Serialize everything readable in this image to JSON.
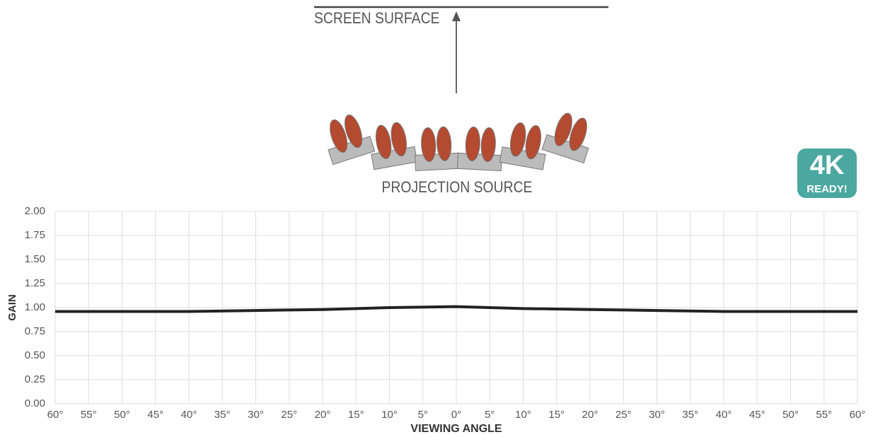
{
  "chart_data": {
    "type": "line",
    "annotations": [
      "SCREEN SURFACE",
      "PROJECTION SOURCE"
    ],
    "badge": [
      "4K",
      "READY!"
    ],
    "ylabel": "GAIN",
    "xlabel": "VIEWING ANGLE",
    "x": [
      -60,
      -50,
      -40,
      -30,
      -20,
      -10,
      0,
      10,
      20,
      30,
      40,
      50,
      60
    ],
    "values": [
      0.96,
      0.96,
      0.96,
      0.97,
      0.98,
      1.0,
      1.01,
      0.99,
      0.98,
      0.97,
      0.96,
      0.96,
      0.96
    ],
    "color": "#222222",
    "xlim": [
      -60,
      60
    ],
    "xticks": [
      {
        "value": -60,
        "label": "60°"
      },
      {
        "value": -55,
        "label": "55°"
      },
      {
        "value": -50,
        "label": "50°"
      },
      {
        "value": -45,
        "label": "45°"
      },
      {
        "value": -40,
        "label": "40°"
      },
      {
        "value": -35,
        "label": "35°"
      },
      {
        "value": -30,
        "label": "30°"
      },
      {
        "value": -25,
        "label": "25°"
      },
      {
        "value": -20,
        "label": "20°"
      },
      {
        "value": -15,
        "label": "15°"
      },
      {
        "value": -10,
        "label": "10°"
      },
      {
        "value": -5,
        "label": "5°"
      },
      {
        "value": 0,
        "label": "0°"
      },
      {
        "value": 5,
        "label": "5°"
      },
      {
        "value": 10,
        "label": "10°"
      },
      {
        "value": 15,
        "label": "15°"
      },
      {
        "value": 20,
        "label": "20°"
      },
      {
        "value": 25,
        "label": "25°"
      },
      {
        "value": 30,
        "label": "30°"
      },
      {
        "value": 35,
        "label": "35°"
      },
      {
        "value": 40,
        "label": "40°"
      },
      {
        "value": 45,
        "label": "45°"
      },
      {
        "value": 50,
        "label": "50°"
      },
      {
        "value": 55,
        "label": "55°"
      },
      {
        "value": 60,
        "label": "60°"
      }
    ],
    "ylim": [
      0,
      2
    ],
    "yticks": [
      {
        "value": 0,
        "label": "0.00"
      },
      {
        "value": 0.25,
        "label": "0.25"
      },
      {
        "value": 0.5,
        "label": "0.50"
      },
      {
        "value": 0.75,
        "label": "0.75"
      },
      {
        "value": 1,
        "label": "1.00"
      },
      {
        "value": 1.25,
        "label": "1.25"
      },
      {
        "value": 1.5,
        "label": "1.50"
      },
      {
        "value": 1.75,
        "label": "1.75"
      },
      {
        "value": 2,
        "label": "2.00"
      }
    ],
    "grid": true
  }
}
